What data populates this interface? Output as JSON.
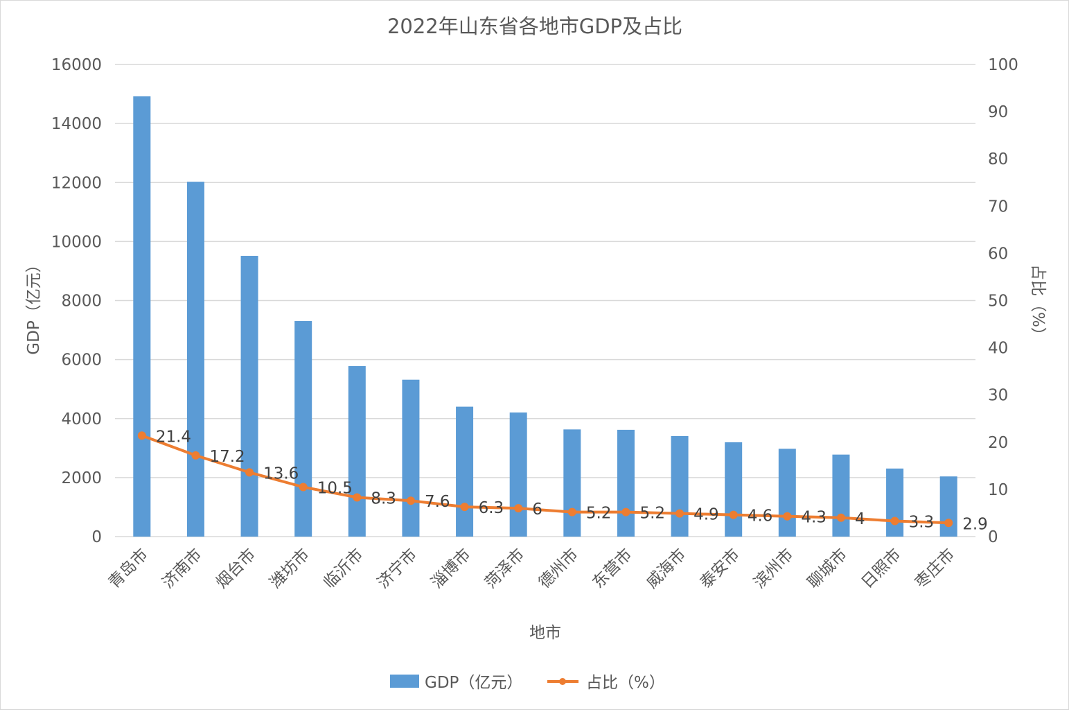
{
  "chart_data": {
    "type": "bar+line",
    "title": "2022年山东省各地市GDP及占比",
    "xlabel": "地市",
    "ylabel": "GDP（亿元）",
    "y2label": "占比（%）",
    "categories": [
      "青岛市",
      "济南市",
      "烟台市",
      "潍坊市",
      "临沂市",
      "济宁市",
      "淄博市",
      "菏泽市",
      "德州市",
      "东营市",
      "威海市",
      "泰安市",
      "滨州市",
      "聊城市",
      "日照市",
      "枣庄市"
    ],
    "series": [
      {
        "name": "GDP（亿元）",
        "type": "bar",
        "axis": "left",
        "color": "#5b9bd5",
        "values": [
          14920,
          12027,
          9515,
          7306,
          5779,
          5317,
          4403,
          4206,
          3633,
          3620,
          3408,
          3198,
          2976,
          2780,
          2307,
          2039
        ]
      },
      {
        "name": "占比（%）",
        "type": "line",
        "axis": "right",
        "color": "#ed7d31",
        "values": [
          21.4,
          17.2,
          13.6,
          10.5,
          8.3,
          7.6,
          6.3,
          6,
          5.2,
          5.2,
          4.9,
          4.6,
          4.3,
          4,
          3.3,
          2.9
        ],
        "labels": [
          "21.4",
          "17.2",
          "13.6",
          "10.5",
          "8.3",
          "7.6",
          "6.3",
          "6",
          "5.2",
          "5.2",
          "4.9",
          "4.6",
          "4.3",
          "4",
          "3.3",
          "2.9"
        ]
      }
    ],
    "ylim": [
      0,
      16000
    ],
    "y2lim": [
      0,
      100
    ],
    "yticks": [
      "0",
      "2000",
      "4000",
      "6000",
      "8000",
      "10000",
      "12000",
      "14000",
      "16000"
    ],
    "y2ticks": [
      "0",
      "10",
      "20",
      "30",
      "40",
      "50",
      "60",
      "70",
      "80",
      "90",
      "100"
    ],
    "grid": true,
    "legend_position": "bottom"
  },
  "legend": {
    "bar_label": "GDP（亿元）",
    "line_label": "占比（%）"
  }
}
